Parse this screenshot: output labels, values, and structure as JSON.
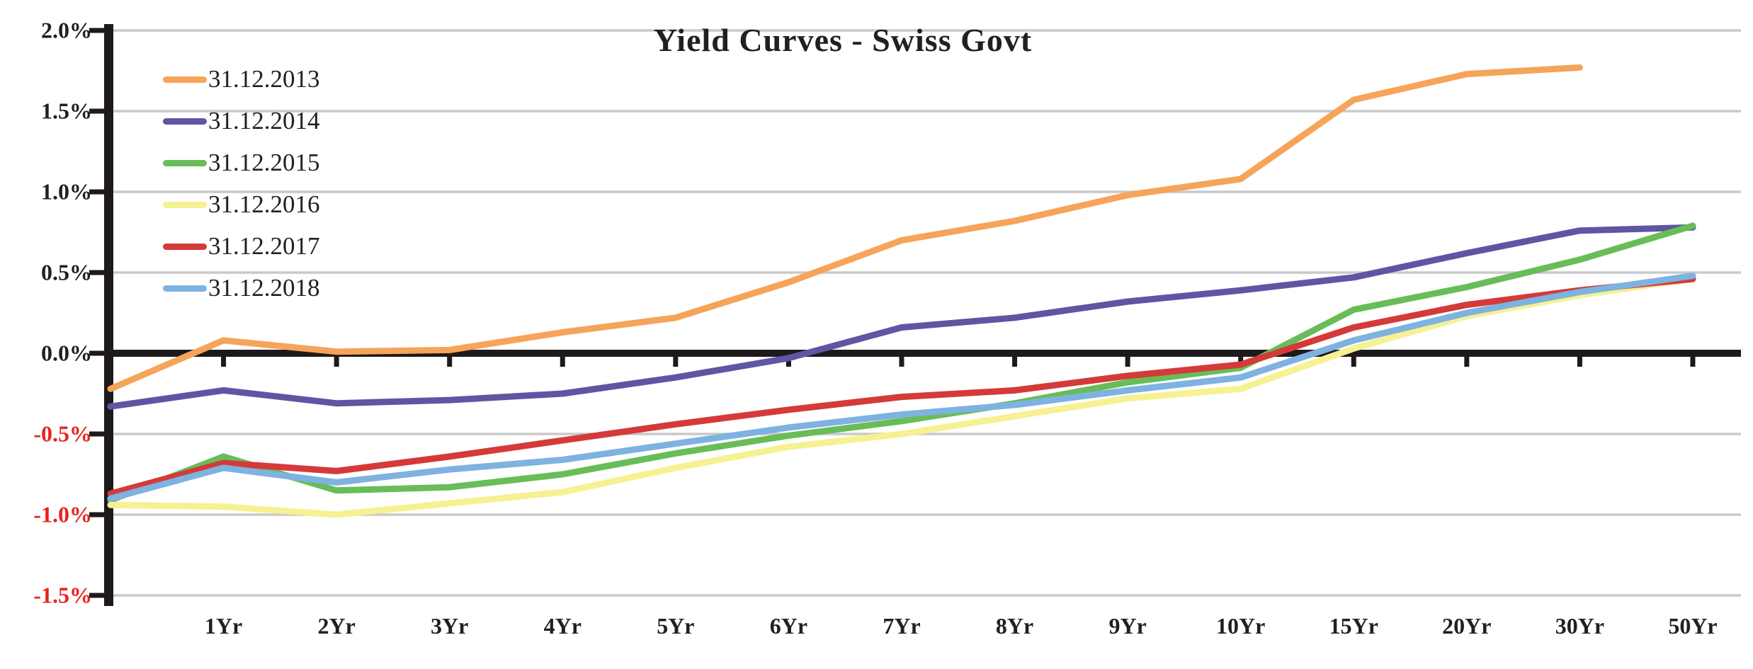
{
  "chart_data": {
    "type": "line",
    "title": "Yield Curves - Swiss Govt",
    "categories": [
      "",
      "1Yr",
      "2Yr",
      "3Yr",
      "4Yr",
      "5Yr",
      "6Yr",
      "7Yr",
      "8Yr",
      "9Yr",
      "10Yr",
      "15Yr",
      "20Yr",
      "30Yr",
      "50Yr"
    ],
    "xlabel": "",
    "ylabel": "",
    "y_unit": "%",
    "ylim": [
      -1.5,
      2.0
    ],
    "grid": true,
    "legend_position": "top-left",
    "y_ticks": [
      {
        "label": "2.0%",
        "value": 2.0
      },
      {
        "label": "1.5%",
        "value": 1.5
      },
      {
        "label": "1.0%",
        "value": 1.0
      },
      {
        "label": "0.5%",
        "value": 0.5
      },
      {
        "label": "0.0%",
        "value": 0.0
      },
      {
        "label": "-0.5%",
        "value": -0.5
      },
      {
        "label": "-1.0%",
        "value": -1.0
      },
      {
        "label": "-1.5%",
        "value": -1.5
      }
    ],
    "series": [
      {
        "name": "31.12.2013",
        "color": "#F5A45A",
        "values": [
          -0.22,
          0.08,
          0.01,
          0.02,
          0.13,
          0.22,
          0.44,
          0.7,
          0.82,
          0.98,
          1.08,
          1.57,
          1.73,
          1.77,
          null
        ]
      },
      {
        "name": "31.12.2014",
        "color": "#5E56A2",
        "values": [
          -0.33,
          -0.23,
          -0.31,
          -0.29,
          -0.25,
          -0.15,
          -0.03,
          0.16,
          0.22,
          0.32,
          0.39,
          0.47,
          0.62,
          0.76,
          0.78
        ]
      },
      {
        "name": "31.12.2015",
        "color": "#68BD58",
        "values": [
          -0.91,
          -0.64,
          -0.85,
          -0.83,
          -0.75,
          -0.62,
          -0.51,
          -0.42,
          -0.31,
          -0.18,
          -0.09,
          0.27,
          0.41,
          0.58,
          0.79
        ]
      },
      {
        "name": "31.12.2016",
        "color": "#F6F192",
        "values": [
          -0.94,
          -0.95,
          -1.0,
          -0.93,
          -0.86,
          -0.71,
          -0.58,
          -0.5,
          -0.39,
          -0.28,
          -0.22,
          0.03,
          0.23,
          0.36,
          0.46
        ]
      },
      {
        "name": "31.12.2017",
        "color": "#D43A39",
        "values": [
          -0.87,
          -0.68,
          -0.73,
          -0.64,
          -0.54,
          -0.44,
          -0.35,
          -0.27,
          -0.23,
          -0.14,
          -0.07,
          0.16,
          0.3,
          0.39,
          0.46
        ]
      },
      {
        "name": "31.12.2018",
        "color": "#7EB2E0",
        "values": [
          -0.9,
          -0.71,
          -0.8,
          -0.72,
          -0.66,
          -0.56,
          -0.46,
          -0.38,
          -0.32,
          -0.23,
          -0.15,
          0.08,
          0.25,
          0.38,
          0.48
        ]
      }
    ],
    "colors": {
      "gridline": "#C9C9C9",
      "axis": "#1E1A1B",
      "positive_tick_label": "#231f20",
      "negative_tick_label": "#E6251F",
      "background": "#FFFFFF"
    }
  }
}
